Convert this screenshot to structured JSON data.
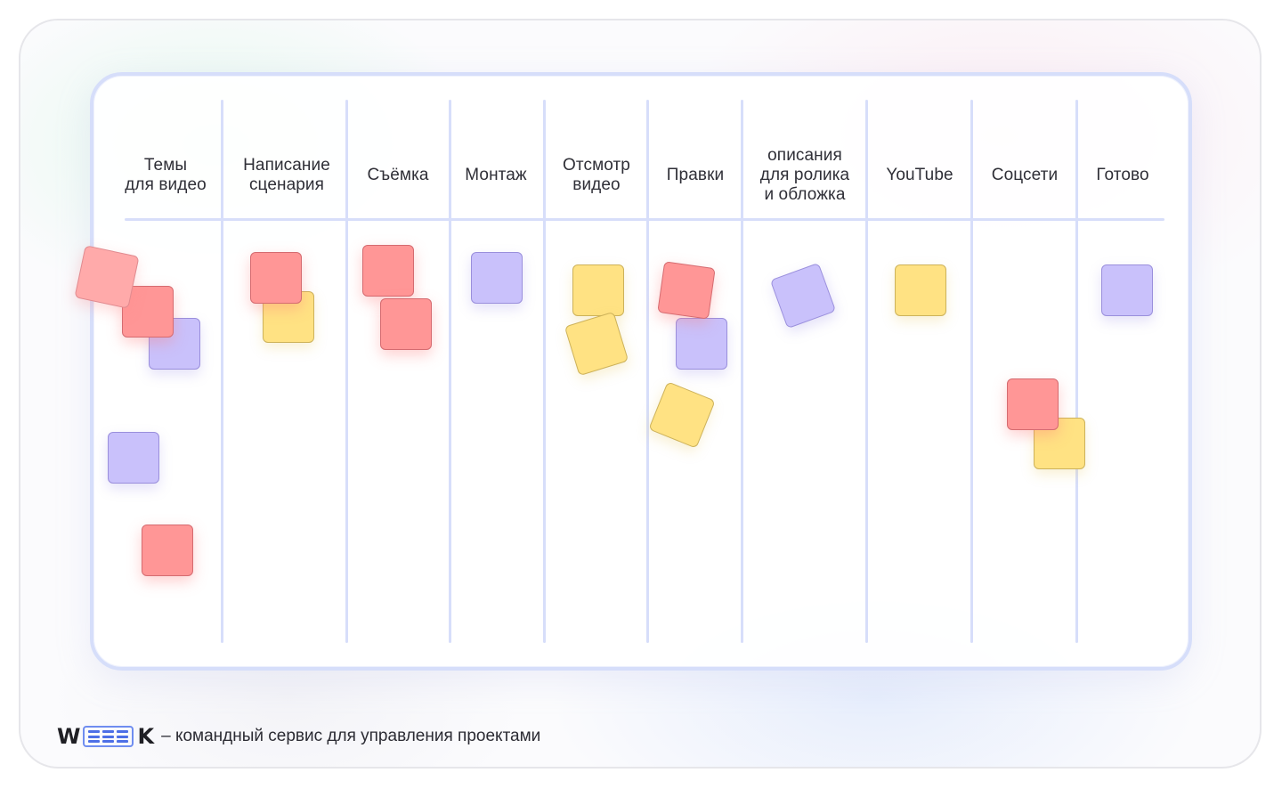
{
  "columns": [
    {
      "title": "Темы\nдля видео"
    },
    {
      "title": "Написание\nсценария"
    },
    {
      "title": "Съёмка"
    },
    {
      "title": "Монтаж"
    },
    {
      "title": "Отсмотр\nвидео"
    },
    {
      "title": "Правки"
    },
    {
      "title": "описания\nдля ролика\nи обложка"
    },
    {
      "title": "YouTube"
    },
    {
      "title": "Соцсети"
    },
    {
      "title": "Готово"
    }
  ],
  "colors": {
    "red": "#ff9696",
    "yellow": "#ffe283",
    "purple": "#c9c1fb",
    "board_border": "#d6defa"
  },
  "footer": {
    "logo_left": "W",
    "logo_right": "K",
    "tagline": "– командный сервис для управления проектами"
  }
}
